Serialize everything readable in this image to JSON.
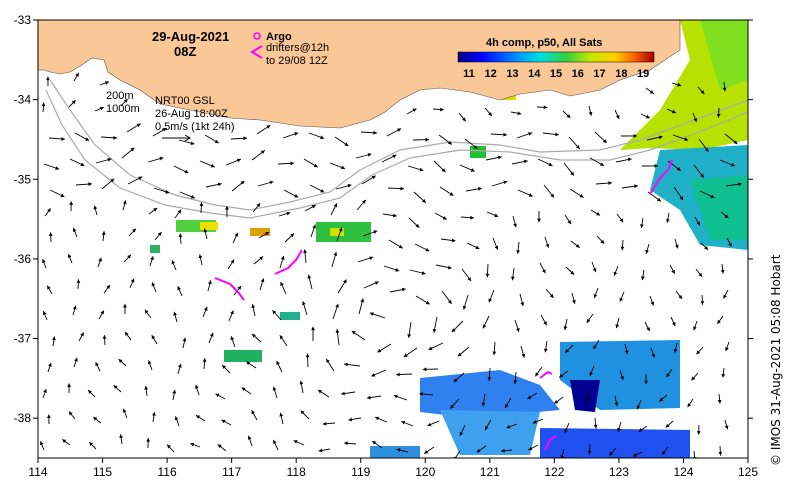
{
  "map": {
    "date": "29-Aug-2021",
    "time": "08Z",
    "legend_argo": "Argo",
    "legend_drifters": "drifters@12h",
    "legend_drifters_to": "to 29/08 12Z",
    "isobath_200": "200m",
    "isobath_1000": "1000m",
    "product": "NRT00 GSL",
    "product_time": "26-Aug 18:00Z",
    "scale_label": "0.5m/s (1kt 24h)",
    "colorbar_title": "4h comp, p50, All Sats",
    "colorbar_ticks": [
      "11",
      "12",
      "13",
      "14",
      "15",
      "16",
      "17",
      "18",
      "19"
    ],
    "colorbar_range": [
      10.5,
      19.5
    ],
    "credit": "© IMOS 31-Aug-2021 05:08 Hobart",
    "lon_ticks": [
      "114",
      "115",
      "116",
      "117",
      "118",
      "119",
      "120",
      "121",
      "122",
      "123",
      "124",
      "125"
    ],
    "lat_ticks": [
      "-33",
      "-34",
      "-35",
      "-36",
      "-37",
      "-38"
    ],
    "lon_range": [
      114,
      125
    ],
    "lat_range": [
      -33,
      -38.5
    ],
    "colors": {
      "land": "#fac796",
      "isobath": "#aaaaaa",
      "arrow": "#000000",
      "drifter": "#ff00ff"
    }
  }
}
